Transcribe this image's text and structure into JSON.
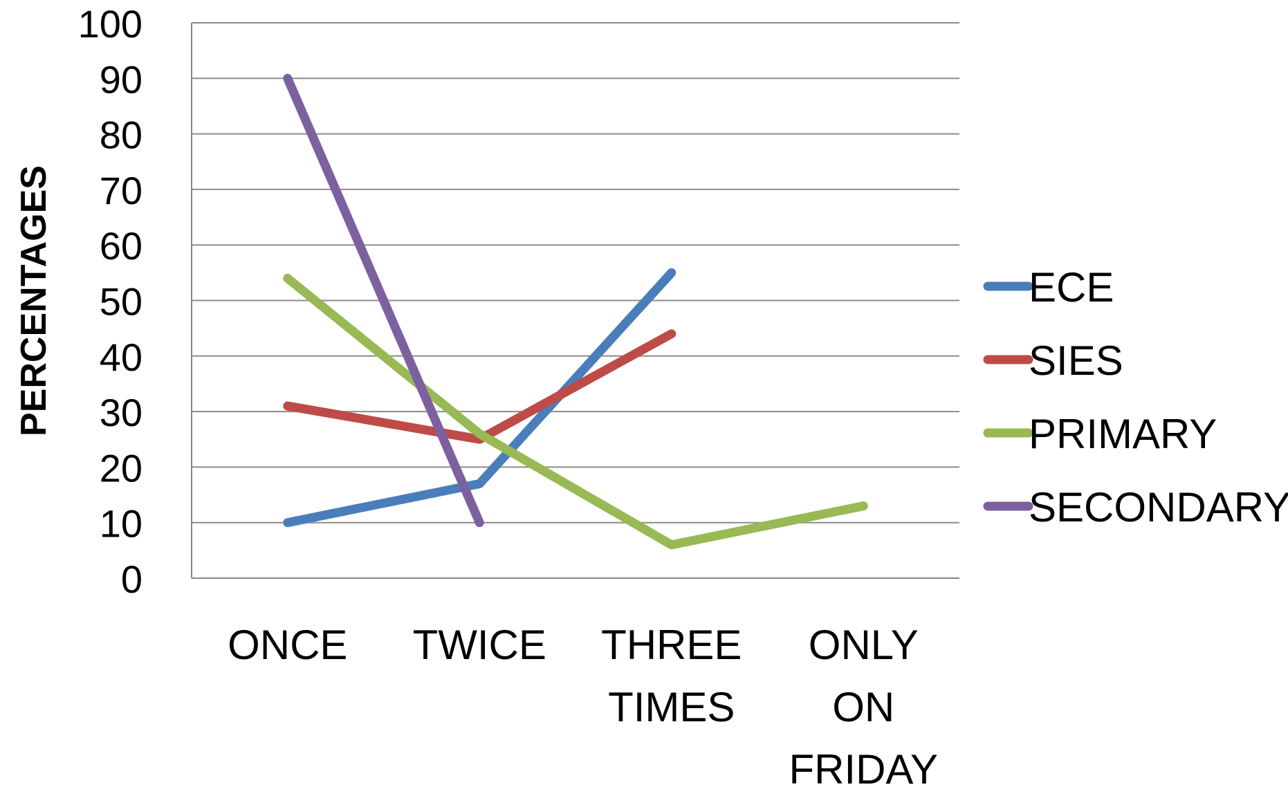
{
  "chart_data": {
    "type": "line",
    "ylabel": "PERCENTAGES",
    "xlabel": "",
    "title": "",
    "categories": [
      [
        "ONCE"
      ],
      [
        "TWICE"
      ],
      [
        "THREE",
        "TIMES"
      ],
      [
        "ONLY",
        "ON",
        "FRIDAY"
      ]
    ],
    "ylim": [
      0,
      100
    ],
    "yticks": [
      "0",
      "10",
      "20",
      "30",
      "40",
      "50",
      "60",
      "70",
      "80",
      "90",
      "100"
    ],
    "grid": "horizontal",
    "legend_position": "right",
    "series": [
      {
        "name": "ECE",
        "color": "#4a7ebb",
        "values": [
          10,
          17,
          55,
          null
        ]
      },
      {
        "name": "SIES",
        "color": "#be4b48",
        "values": [
          31,
          25,
          44,
          null
        ]
      },
      {
        "name": "PRIMARY",
        "color": "#98b954",
        "values": [
          54,
          26,
          6,
          13
        ]
      },
      {
        "name": "SECONDARY",
        "color": "#7d60a0",
        "values": [
          90,
          10,
          null,
          null
        ]
      }
    ]
  }
}
